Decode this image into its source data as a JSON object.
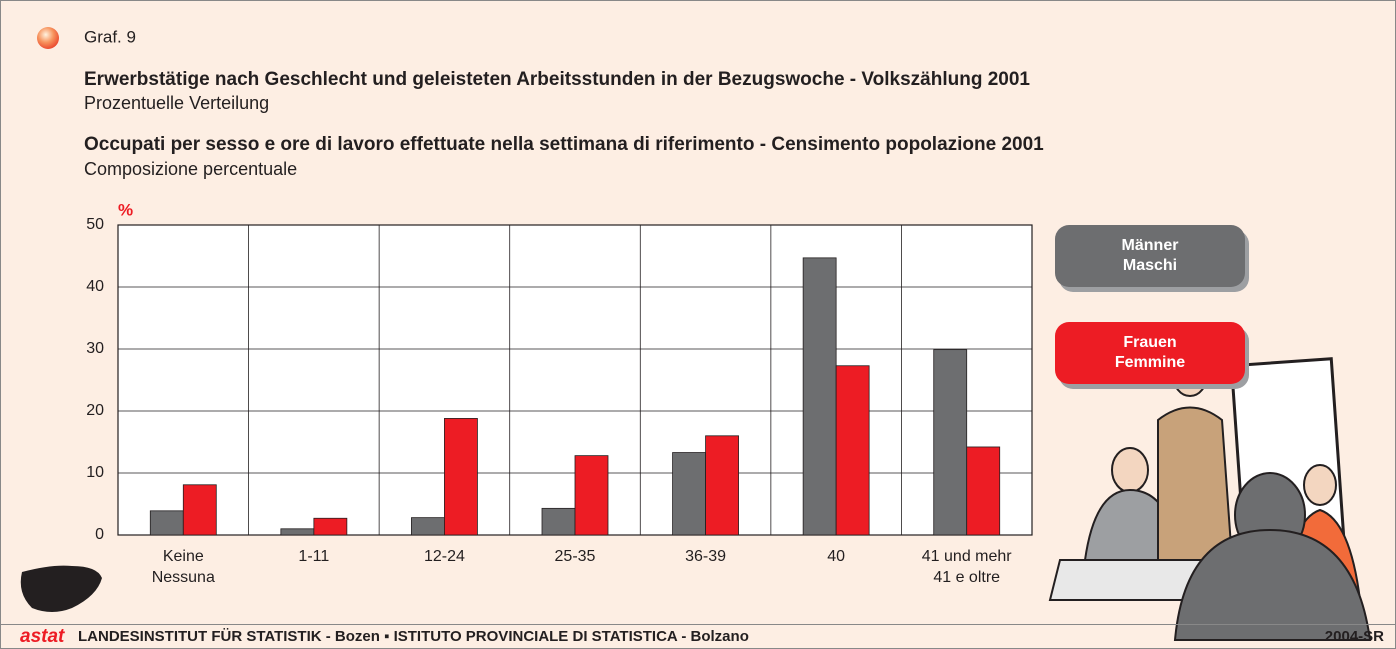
{
  "chart_data": {
    "type": "bar",
    "label": "Graf. 9",
    "title": "Erwerbstätige nach Geschlecht und geleisteten Arbeitsstunden in der Bezugswoche - Volkszählung 2001",
    "subtitle": "Prozentuelle Verteilung",
    "title_it": "Occupati per sesso e ore di lavoro effettuate nella settimana di riferimento - Censimento popolazione 2001",
    "subtitle_it": "Composizione percentuale",
    "y_label": "%",
    "categories": [
      [
        "Keine",
        "Nessuna"
      ],
      [
        "1-11"
      ],
      [
        "12-24"
      ],
      [
        "25-35"
      ],
      [
        "36-39"
      ],
      [
        "40"
      ],
      [
        "41 und mehr",
        "41 e oltre"
      ]
    ],
    "series": [
      {
        "name": [
          "Männer",
          "Maschi"
        ],
        "color": "#6d6e70",
        "values": [
          3.9,
          1.0,
          2.8,
          4.3,
          13.3,
          44.7,
          29.9
        ]
      },
      {
        "name": [
          "Frauen",
          "Femmine"
        ],
        "color": "#ed1c24",
        "values": [
          8.1,
          2.7,
          18.8,
          12.8,
          16.0,
          27.3,
          14.2
        ]
      }
    ],
    "ylim": [
      0,
      50
    ],
    "yticks": [
      0,
      10,
      20,
      30,
      40,
      50
    ],
    "grid": true,
    "footer": {
      "logo": "astat",
      "text": "LANDESINSTITUT FÜR STATISTIK - Bozen ▪ ISTITUTO PROVINCIALE DI STATISTICA - Bolzano",
      "code": "2004-SR"
    }
  }
}
